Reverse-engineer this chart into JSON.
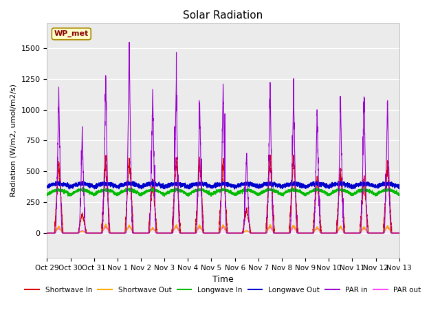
{
  "title": "Solar Radiation",
  "ylabel": "Radiation (W/m2, umol/m2/s)",
  "xlabel": "Time",
  "ylim": [
    -200,
    1700
  ],
  "xlim": [
    0,
    15
  ],
  "xtick_labels": [
    "Oct 29",
    "Oct 30",
    "Oct 31",
    "Nov 1",
    "Nov 2",
    "Nov 3",
    "Nov 4",
    "Nov 5",
    "Nov 6",
    "Nov 7",
    "Nov 8",
    "Nov 9",
    "Nov 10",
    "Nov 11",
    "Nov 12",
    "Nov 13"
  ],
  "xtick_positions": [
    0,
    1,
    2,
    3,
    4,
    5,
    6,
    7,
    8,
    9,
    10,
    11,
    12,
    13,
    14,
    15
  ],
  "colors": {
    "shortwave_in": "#dd0000",
    "shortwave_out": "#ffaa00",
    "longwave_in": "#00bb00",
    "longwave_out": "#0000cc",
    "par_in": "#9900cc",
    "par_out": "#ff44ff"
  },
  "legend_label": "WP_met",
  "plot_bg": "#ebebeb",
  "n_days": 15,
  "n_points_per_day": 288,
  "par_in_peaks": [
    1150,
    820,
    1260,
    1520,
    1130,
    1200,
    1050,
    1200,
    650,
    1200,
    1150,
    970,
    1060,
    1080,
    1060
  ],
  "sw_in_peaks": [
    580,
    160,
    600,
    610,
    430,
    600,
    600,
    600,
    200,
    630,
    620,
    460,
    500,
    460,
    560
  ],
  "sw_out_peaks": [
    55,
    15,
    70,
    65,
    45,
    65,
    65,
    65,
    20,
    65,
    65,
    50,
    55,
    50,
    60
  ],
  "par_out_peaks": [
    40,
    20,
    50,
    55,
    35,
    50,
    50,
    50,
    20,
    50,
    50,
    40,
    45,
    40,
    50
  ]
}
